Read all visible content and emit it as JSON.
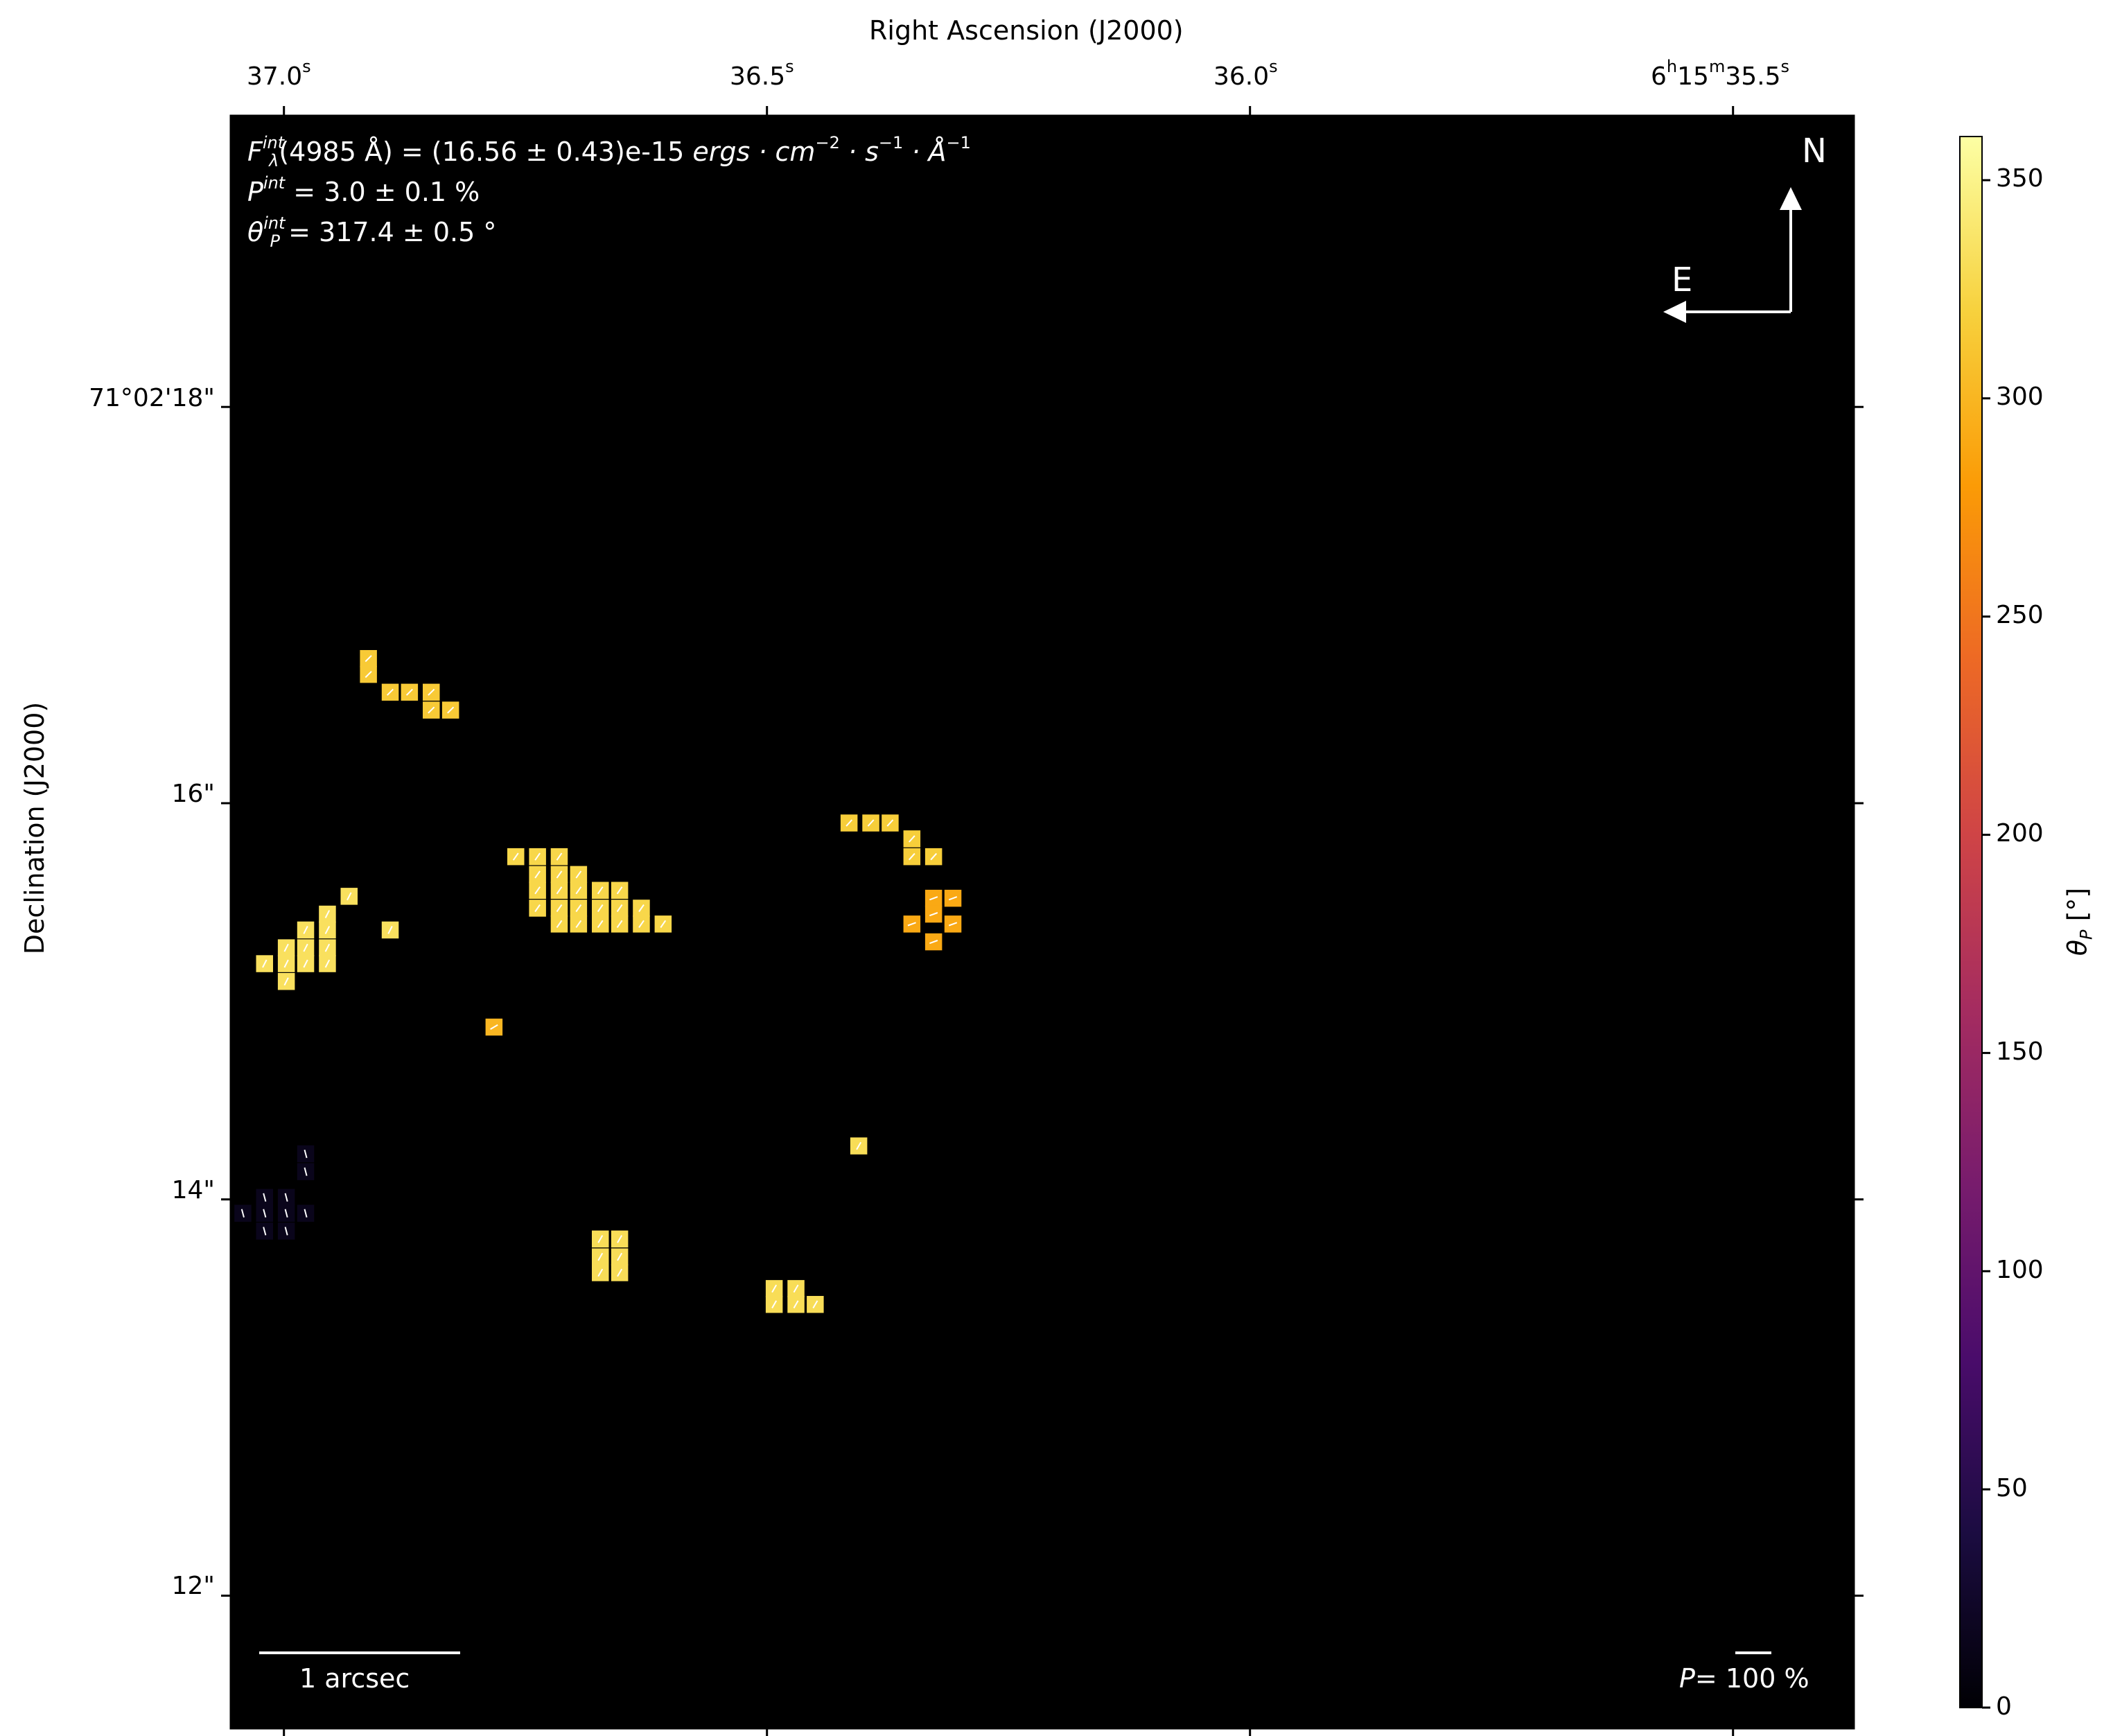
{
  "chart_data": {
    "type": "heatmap",
    "x_axis": {
      "label": "Right Ascension (J2000)",
      "ticks": [
        {
          "value": 37.0,
          "h": "",
          "m": "",
          "s": "37.0"
        },
        {
          "value": 36.5,
          "h": "",
          "m": "",
          "s": "36.5"
        },
        {
          "value": 36.0,
          "h": "",
          "m": "",
          "s": "36.0"
        },
        {
          "value": 35.5,
          "h": "6",
          "m": "15",
          "s": "35.5"
        }
      ],
      "range_s": [
        37.055,
        35.375
      ]
    },
    "y_axis": {
      "label": "Declination (J2000)",
      "ticks": [
        {
          "value": 18,
          "label": "71°02'18\""
        },
        {
          "value": 16,
          "label": "16\""
        },
        {
          "value": 14,
          "label": "14\""
        },
        {
          "value": 12,
          "label": "12\""
        }
      ],
      "range_arcsec": [
        11.33,
        19.47
      ]
    },
    "colorbar": {
      "label": "θ",
      "label_sub": "P",
      "label_unit": "[°]",
      "range": [
        0,
        360
      ],
      "ticks": [
        0,
        50,
        100,
        150,
        200,
        250,
        300,
        350
      ],
      "colormap": "inferno",
      "stops": [
        "#000004",
        "#1b0c41",
        "#4a0c6b",
        "#781c6d",
        "#a52c60",
        "#cf4446",
        "#ed6925",
        "#fb9b06",
        "#f7d13d",
        "#fcffa4"
      ]
    },
    "background_color": "#000000",
    "pixel_size_arcsec": 0.0857,
    "regions": [
      {
        "name": "upper-left-arc",
        "theta": 315,
        "cells": [
          [
            0.35,
            16.73
          ],
          [
            0.35,
            16.65
          ],
          [
            0.44,
            16.56
          ],
          [
            0.52,
            16.56
          ],
          [
            0.61,
            16.56
          ],
          [
            0.61,
            16.47
          ],
          [
            0.69,
            16.47
          ]
        ]
      },
      {
        "name": "left-clump",
        "theta": 333,
        "cells": [
          [
            0.27,
            15.53
          ],
          [
            0.18,
            15.44
          ],
          [
            0.09,
            15.36
          ],
          [
            0.01,
            15.27
          ],
          [
            0.09,
            15.27
          ],
          [
            0.18,
            15.36
          ],
          [
            0.18,
            15.27
          ],
          [
            0.09,
            15.19
          ],
          [
            0.18,
            15.19
          ],
          [
            -0.08,
            15.19
          ],
          [
            0.01,
            15.19
          ],
          [
            0.01,
            15.1
          ],
          [
            0.44,
            15.36
          ]
        ]
      },
      {
        "name": "central-clump",
        "theta": 325,
        "cells": [
          [
            0.96,
            15.73
          ],
          [
            1.05,
            15.73
          ],
          [
            1.14,
            15.73
          ],
          [
            1.05,
            15.64
          ],
          [
            1.14,
            15.64
          ],
          [
            1.22,
            15.64
          ],
          [
            1.05,
            15.56
          ],
          [
            1.14,
            15.56
          ],
          [
            1.22,
            15.56
          ],
          [
            1.31,
            15.56
          ],
          [
            1.39,
            15.56
          ],
          [
            1.05,
            15.47
          ],
          [
            1.14,
            15.47
          ],
          [
            1.22,
            15.47
          ],
          [
            1.31,
            15.47
          ],
          [
            1.39,
            15.47
          ],
          [
            1.48,
            15.47
          ],
          [
            1.14,
            15.39
          ],
          [
            1.22,
            15.39
          ],
          [
            1.31,
            15.39
          ],
          [
            1.39,
            15.39
          ],
          [
            1.48,
            15.39
          ],
          [
            1.57,
            15.39
          ]
        ]
      },
      {
        "name": "central-dot",
        "theta": 300,
        "cells": [
          [
            0.87,
            14.87
          ]
        ]
      },
      {
        "name": "upper-right-arc",
        "theta": 318,
        "cells": [
          [
            2.34,
            15.9
          ],
          [
            2.43,
            15.9
          ],
          [
            2.51,
            15.9
          ],
          [
            2.6,
            15.82
          ],
          [
            2.6,
            15.73
          ],
          [
            2.69,
            15.73
          ]
        ]
      },
      {
        "name": "right-clump",
        "theta": 290,
        "cells": [
          [
            2.69,
            15.52
          ],
          [
            2.77,
            15.52
          ],
          [
            2.6,
            15.39
          ],
          [
            2.69,
            15.44
          ],
          [
            2.77,
            15.39
          ],
          [
            2.69,
            15.3
          ]
        ]
      },
      {
        "name": "right-dot",
        "theta": 330,
        "cells": [
          [
            2.38,
            14.27
          ]
        ]
      },
      {
        "name": "lower-center-block",
        "theta": 330,
        "cells": [
          [
            1.31,
            13.8
          ],
          [
            1.39,
            13.8
          ],
          [
            1.31,
            13.71
          ],
          [
            1.39,
            13.71
          ],
          [
            1.31,
            13.63
          ],
          [
            1.39,
            13.63
          ]
        ]
      },
      {
        "name": "lower-right-block",
        "theta": 330,
        "cells": [
          [
            2.03,
            13.55
          ],
          [
            2.12,
            13.55
          ],
          [
            2.03,
            13.47
          ],
          [
            2.12,
            13.47
          ],
          [
            2.2,
            13.47
          ]
        ]
      },
      {
        "name": "left-dark-clump",
        "theta": 15,
        "cells": [
          [
            0.09,
            14.23
          ],
          [
            0.09,
            14.14
          ],
          [
            -0.08,
            14.01
          ],
          [
            0.01,
            14.01
          ],
          [
            -0.17,
            13.93
          ],
          [
            -0.08,
            13.93
          ],
          [
            0.01,
            13.93
          ],
          [
            0.09,
            13.93
          ],
          [
            -0.08,
            13.84
          ],
          [
            0.01,
            13.84
          ]
        ]
      }
    ],
    "overlay": {
      "flux_value": "(4985 Å) = (16.56 ± 0.43)e-15",
      "flux_unit": "ergs · cm",
      "flux_sup1": "−2",
      "flux_unit2": " · s",
      "flux_sup2": "−1",
      "flux_unit3": " · Å",
      "flux_sup3": "−1",
      "flux_sym": "F",
      "flux_sub": "λ",
      "int_sup": "int",
      "pol_sym": "P",
      "pol_value": " = 3.0 ± 0.1 %",
      "theta_sym": "θ",
      "theta_sub": "P",
      "theta_value": " = 317.4 ± 0.5 °"
    },
    "compass": {
      "north": "N",
      "east": "E"
    },
    "scalebar_label": "1 arcsec",
    "pol_scale": {
      "sym": "P",
      "text": "= 100 %"
    }
  }
}
